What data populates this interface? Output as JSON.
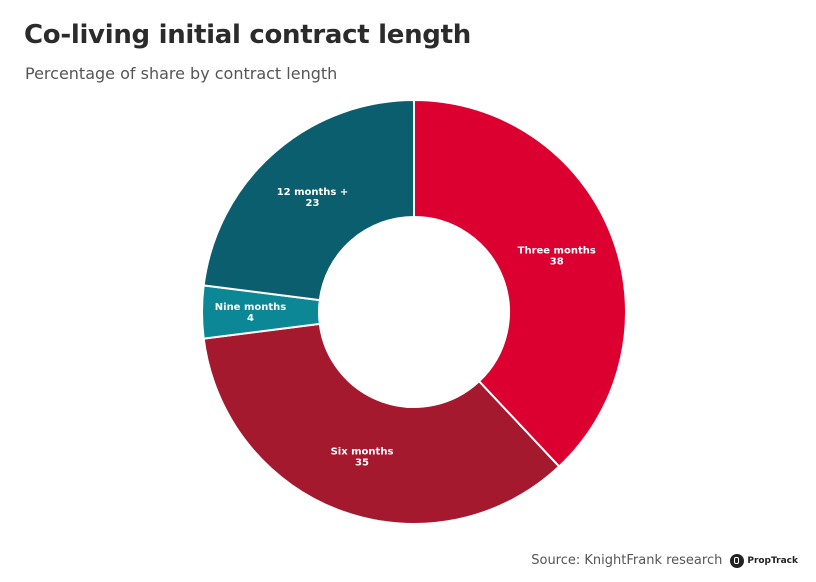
{
  "header": {
    "title": "Co-living initial contract length",
    "subtitle": "Percentage of share by contract length"
  },
  "footer": {
    "source": "Source: KnightFrank research",
    "logo_text": "PropTrack"
  },
  "chart_data": {
    "type": "pie",
    "variant": "donut",
    "title": "Co-living initial contract length",
    "subtitle": "Percentage of share by contract length",
    "slices": [
      {
        "label": "Three months",
        "value": 38,
        "color": "#dc0030"
      },
      {
        "label": "Six months",
        "value": 35,
        "color": "#a5192f"
      },
      {
        "label": "Nine months",
        "value": 4,
        "color": "#0b8796"
      },
      {
        "label": "12 months +",
        "value": 23,
        "color": "#0b5e6e"
      }
    ],
    "start": "12 o'clock",
    "direction": "clockwise",
    "legend": "none"
  }
}
